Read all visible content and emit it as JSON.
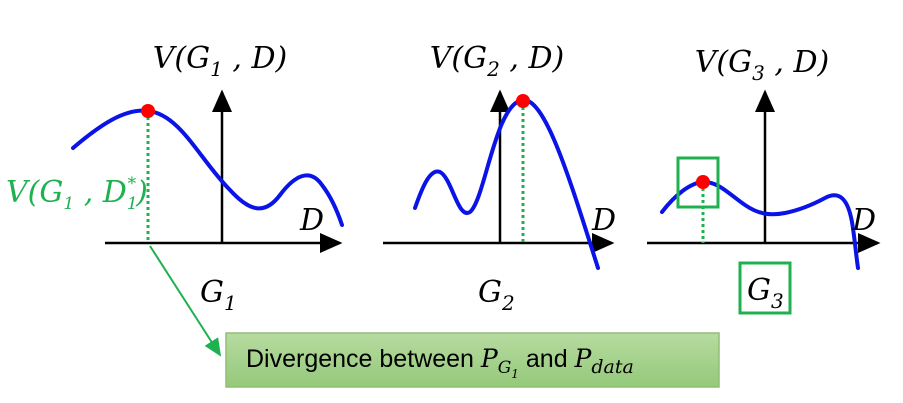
{
  "panels": [
    {
      "title": [
        "V(G",
        "1",
        " , D)"
      ],
      "axis_label": "D",
      "x_label": [
        "G",
        "1"
      ]
    },
    {
      "title": [
        "V(G",
        "2",
        " , D)"
      ],
      "axis_label": "D",
      "x_label": [
        "G",
        "2"
      ]
    },
    {
      "title": [
        "V(G",
        "3",
        " , D)"
      ],
      "axis_label": "D",
      "x_label": [
        "G",
        "3"
      ]
    }
  ],
  "annotation": [
    "V(G",
    "1",
    " , D",
    "1",
    "*",
    ")"
  ],
  "callout": [
    "Divergence between ",
    "P",
    "G",
    "1",
    " and ",
    "P",
    "data"
  ]
}
